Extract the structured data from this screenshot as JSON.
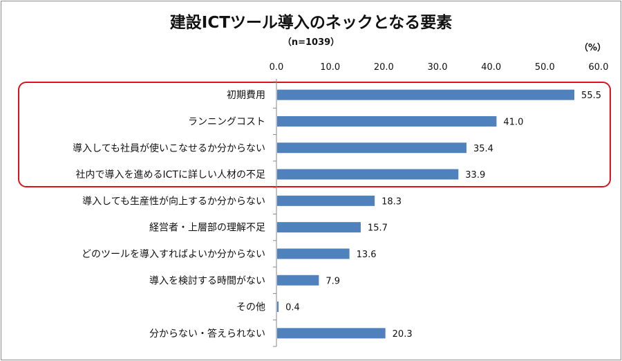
{
  "chart_data": {
    "type": "bar",
    "orientation": "horizontal",
    "title": "建設ICTツール導入のネックとなる要素",
    "subtitle": "（n=1039）",
    "unit": "（%）",
    "xlim": [
      0,
      60
    ],
    "ticks": [
      "0.0",
      "10.0",
      "20.0",
      "30.0",
      "40.0",
      "50.0",
      "60.0"
    ],
    "tick_values": [
      0,
      10,
      20,
      30,
      40,
      50,
      60
    ],
    "categories": [
      "初期費用",
      "ランニングコスト",
      "導入しても社員が使いこなせるか分からない",
      "社内で導入を進めるICTに詳しい人材の不足",
      "導入しても生産性が向上するか分からない",
      "経営者・上層部の理解不足",
      "どのツールを導入すればよいか分からない",
      "導入を検討する時間がない",
      "その他",
      "分からない・答えられない"
    ],
    "values": [
      55.5,
      41.0,
      35.4,
      33.9,
      18.3,
      15.7,
      13.6,
      7.9,
      0.4,
      20.3
    ],
    "value_labels": [
      "55.5",
      "41.0",
      "35.4",
      "33.9",
      "18.3",
      "15.7",
      "13.6",
      "7.9",
      "0.4",
      "20.3"
    ],
    "highlighted_top_n": 4,
    "colors": {
      "bar": "#4f81bd",
      "highlight": "#e0101a",
      "axis": "#888888"
    }
  }
}
